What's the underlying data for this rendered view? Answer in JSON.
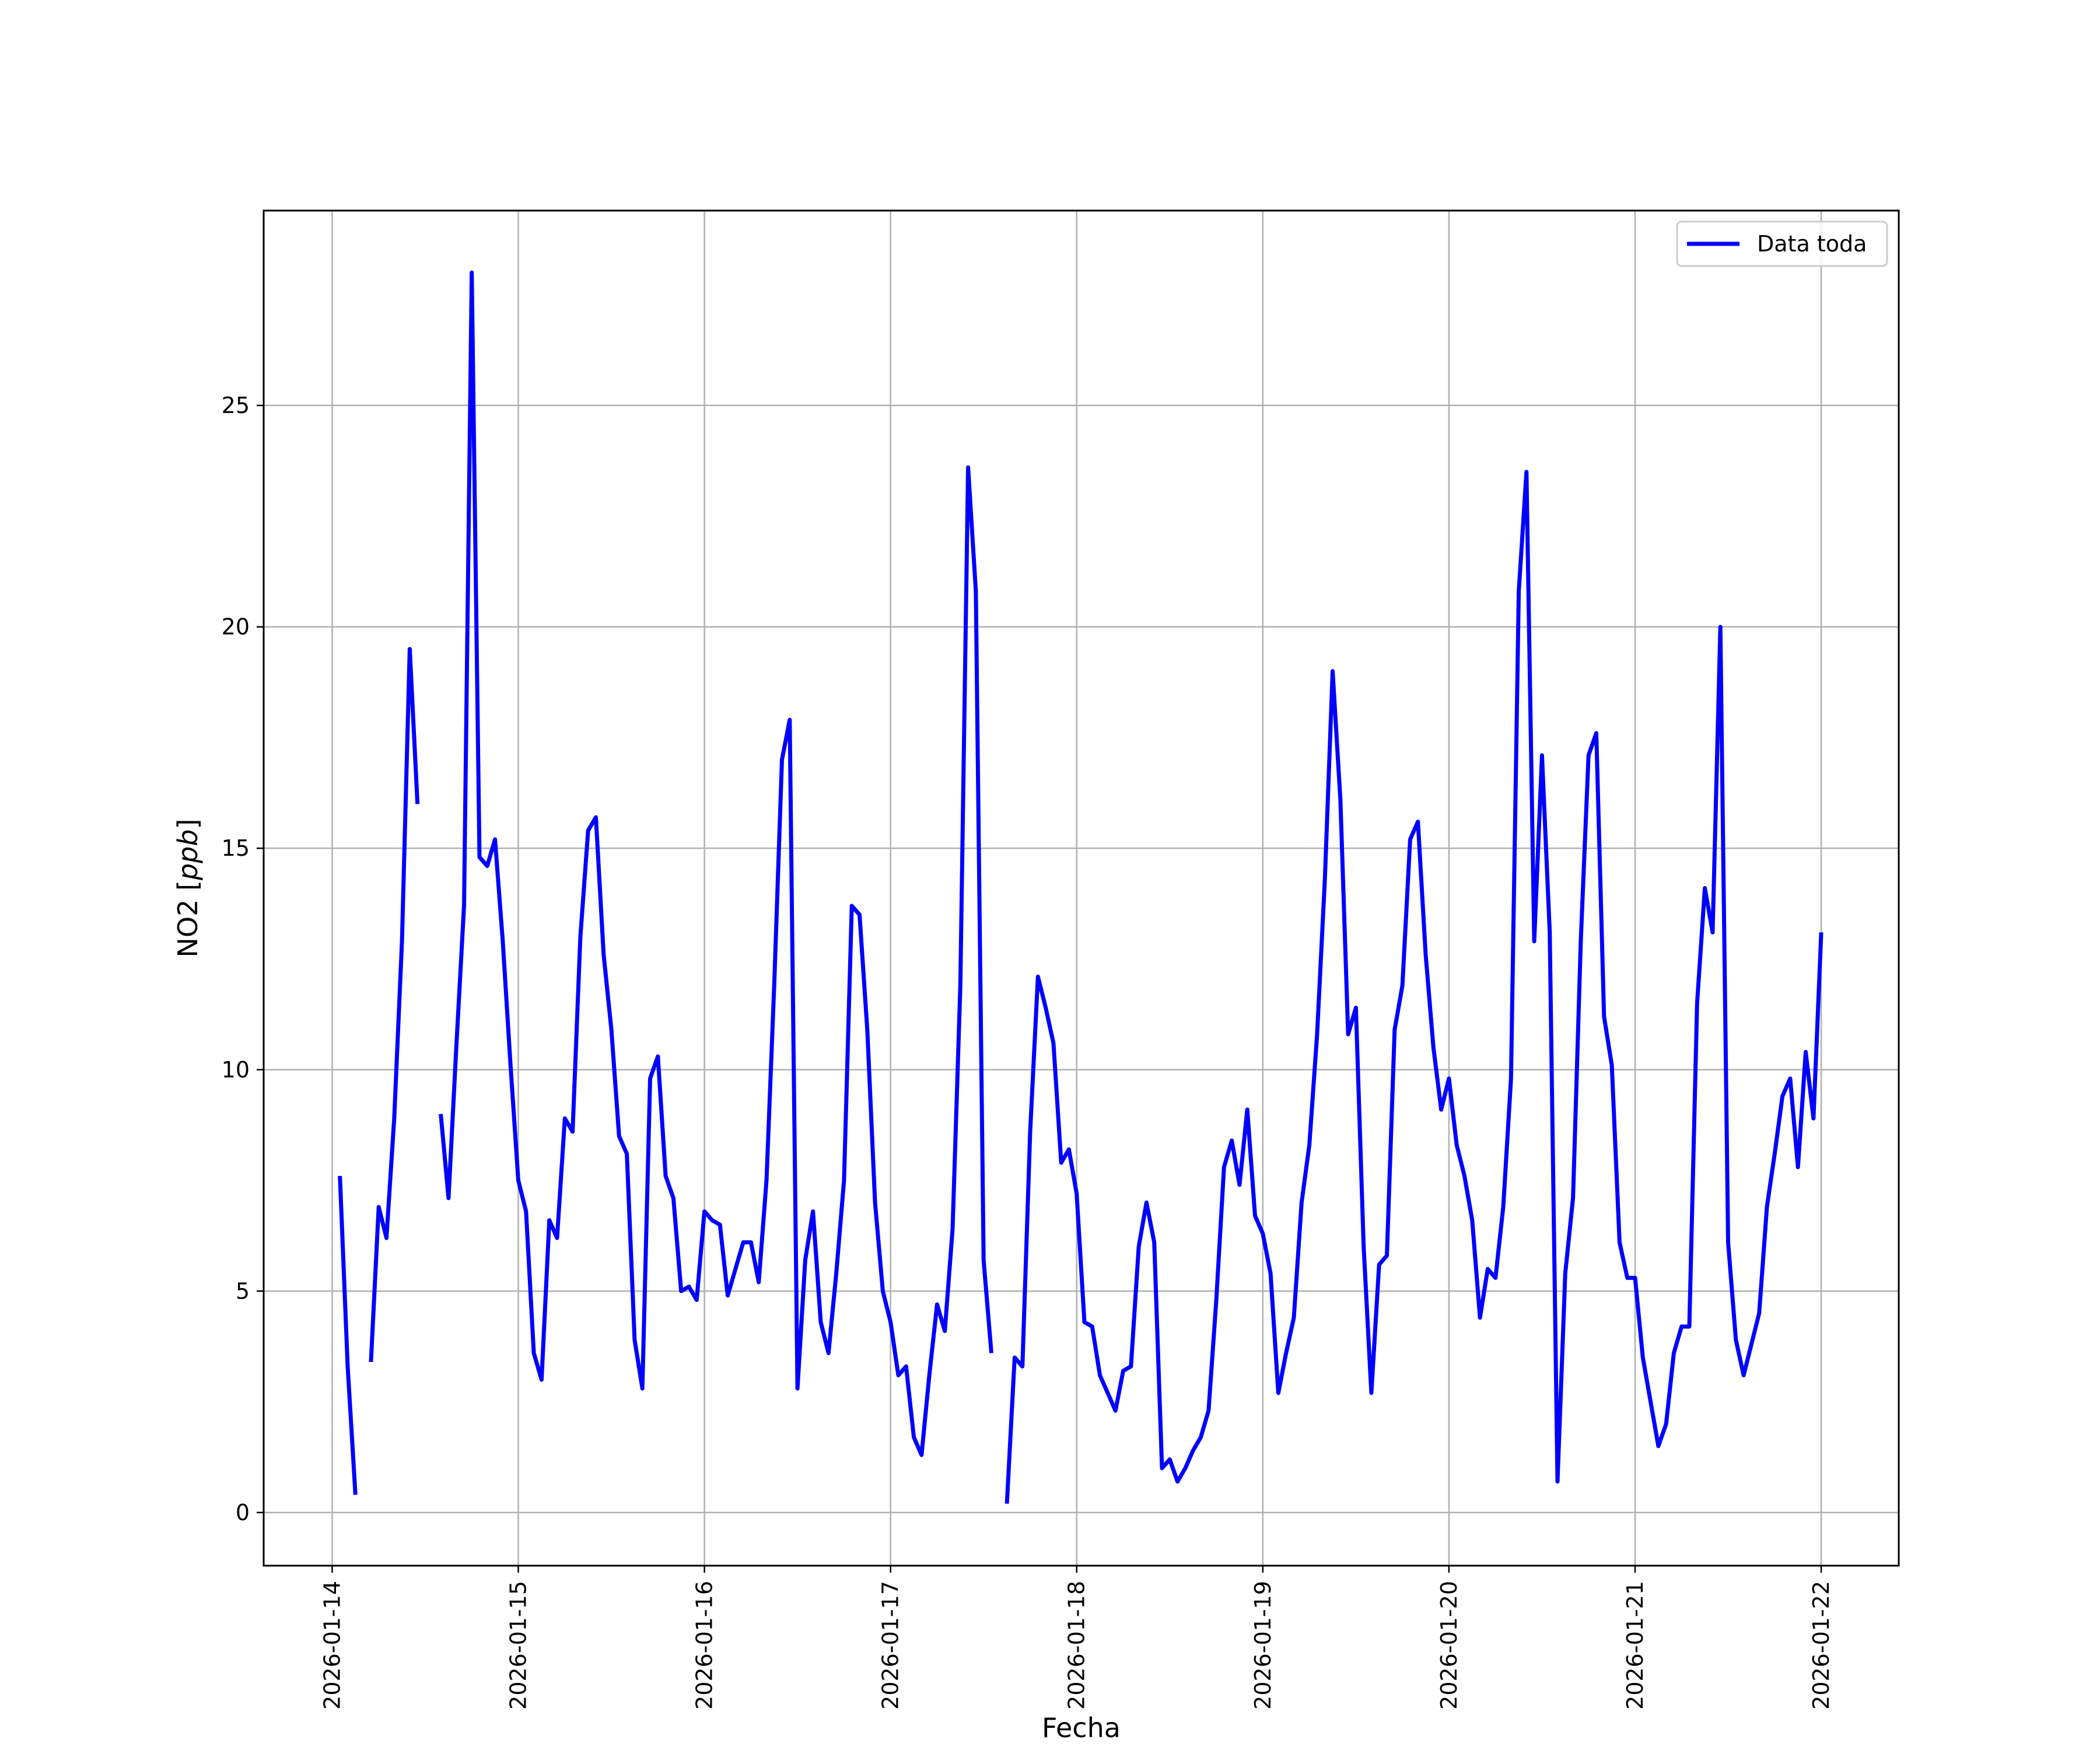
{
  "chart_data": {
    "type": "line",
    "title": "",
    "xlabel": "Fecha",
    "ylabel": "NO2 [ppb]",
    "ylabel_base": "NO2",
    "ylabel_unit": "ppb",
    "ylim": [
      -1.2,
      29.4
    ],
    "yticks": [
      0,
      5,
      10,
      15,
      20,
      25
    ],
    "xticks": [
      "2026-01-14",
      "2026-01-15",
      "2026-01-16",
      "2026-01-17",
      "2026-01-18",
      "2026-01-19",
      "2026-01-20",
      "2026-01-21",
      "2026-01-22"
    ],
    "xlim": [
      "2026-01-13T15:10",
      "2026-01-22T10:00"
    ],
    "grid": true,
    "legend_position": "top-right",
    "series_color": "#0000ff",
    "series": [
      {
        "name": "Data toda",
        "segments": [
          [
            [
              "2026-01-14T01:00",
              7.6
            ],
            [
              "2026-01-14T02:00",
              3.3
            ],
            [
              "2026-01-14T03:00",
              0.4
            ]
          ],
          [
            [
              "2026-01-14T05:00",
              3.4
            ],
            [
              "2026-01-14T06:00",
              6.9
            ],
            [
              "2026-01-14T07:00",
              6.2
            ],
            [
              "2026-01-14T08:00",
              8.9
            ],
            [
              "2026-01-14T09:00",
              12.9
            ],
            [
              "2026-01-14T10:00",
              19.5
            ],
            [
              "2026-01-14T11:00",
              16.0
            ]
          ],
          [
            [
              "2026-01-14T14:00",
              9.0
            ],
            [
              "2026-01-14T15:00",
              7.1
            ],
            [
              "2026-01-14T16:00",
              10.5
            ],
            [
              "2026-01-14T17:00",
              13.7
            ],
            [
              "2026-01-14T18:00",
              28.0
            ],
            [
              "2026-01-14T19:00",
              14.8
            ],
            [
              "2026-01-14T20:00",
              14.6
            ],
            [
              "2026-01-14T21:00",
              15.2
            ],
            [
              "2026-01-14T22:00",
              12.9
            ],
            [
              "2026-01-14T23:00",
              10.1
            ],
            [
              "2026-01-15T00:00",
              7.5
            ],
            [
              "2026-01-15T01:00",
              6.8
            ],
            [
              "2026-01-15T02:00",
              3.6
            ],
            [
              "2026-01-15T03:00",
              3.0
            ],
            [
              "2026-01-15T04:00",
              6.6
            ],
            [
              "2026-01-15T05:00",
              6.2
            ],
            [
              "2026-01-15T06:00",
              8.9
            ],
            [
              "2026-01-15T07:00",
              8.6
            ],
            [
              "2026-01-15T08:00",
              13.0
            ],
            [
              "2026-01-15T09:00",
              15.4
            ],
            [
              "2026-01-15T10:00",
              15.7
            ],
            [
              "2026-01-15T11:00",
              12.6
            ],
            [
              "2026-01-15T12:00",
              10.9
            ],
            [
              "2026-01-15T13:00",
              8.5
            ],
            [
              "2026-01-15T14:00",
              8.1
            ],
            [
              "2026-01-15T15:00",
              3.9
            ],
            [
              "2026-01-15T16:00",
              2.8
            ],
            [
              "2026-01-15T17:00",
              9.8
            ],
            [
              "2026-01-15T18:00",
              10.3
            ],
            [
              "2026-01-15T19:00",
              7.6
            ],
            [
              "2026-01-15T20:00",
              7.1
            ],
            [
              "2026-01-15T21:00",
              5.0
            ],
            [
              "2026-01-15T22:00",
              5.1
            ],
            [
              "2026-01-15T23:00",
              4.8
            ],
            [
              "2026-01-16T00:00",
              6.8
            ],
            [
              "2026-01-16T01:00",
              6.6
            ],
            [
              "2026-01-16T02:00",
              6.5
            ],
            [
              "2026-01-16T03:00",
              4.9
            ],
            [
              "2026-01-16T04:00",
              5.5
            ],
            [
              "2026-01-16T05:00",
              6.1
            ],
            [
              "2026-01-16T06:00",
              6.1
            ],
            [
              "2026-01-16T07:00",
              5.2
            ],
            [
              "2026-01-16T08:00",
              7.5
            ],
            [
              "2026-01-16T09:00",
              11.9
            ],
            [
              "2026-01-16T10:00",
              17.0
            ],
            [
              "2026-01-16T11:00",
              17.9
            ],
            [
              "2026-01-16T12:00",
              2.8
            ],
            [
              "2026-01-16T13:00",
              5.7
            ],
            [
              "2026-01-16T14:00",
              6.8
            ],
            [
              "2026-01-16T15:00",
              4.3
            ],
            [
              "2026-01-16T16:00",
              3.6
            ],
            [
              "2026-01-16T17:00",
              5.4
            ],
            [
              "2026-01-16T18:00",
              7.5
            ],
            [
              "2026-01-16T19:00",
              13.7
            ],
            [
              "2026-01-16T20:00",
              13.5
            ],
            [
              "2026-01-16T21:00",
              10.9
            ],
            [
              "2026-01-16T22:00",
              7.0
            ],
            [
              "2026-01-16T23:00",
              5.0
            ],
            [
              "2026-01-17T00:00",
              4.3
            ],
            [
              "2026-01-17T01:00",
              3.1
            ],
            [
              "2026-01-17T02:00",
              3.3
            ],
            [
              "2026-01-17T03:00",
              1.7
            ],
            [
              "2026-01-17T04:00",
              1.3
            ],
            [
              "2026-01-17T05:00",
              3.1
            ],
            [
              "2026-01-17T06:00",
              4.7
            ],
            [
              "2026-01-17T07:00",
              4.1
            ],
            [
              "2026-01-17T08:00",
              6.4
            ],
            [
              "2026-01-17T09:00",
              11.9
            ],
            [
              "2026-01-17T10:00",
              23.6
            ],
            [
              "2026-01-17T11:00",
              20.8
            ],
            [
              "2026-01-17T12:00",
              5.7
            ],
            [
              "2026-01-17T13:00",
              3.6
            ]
          ],
          [
            [
              "2026-01-17T15:00",
              0.2
            ],
            [
              "2026-01-17T16:00",
              3.5
            ],
            [
              "2026-01-17T17:00",
              3.3
            ],
            [
              "2026-01-17T18:00",
              8.6
            ],
            [
              "2026-01-17T19:00",
              12.1
            ],
            [
              "2026-01-17T20:00",
              11.4
            ],
            [
              "2026-01-17T21:00",
              10.6
            ],
            [
              "2026-01-17T22:00",
              7.9
            ],
            [
              "2026-01-17T23:00",
              8.2
            ],
            [
              "2026-01-18T00:00",
              7.2
            ],
            [
              "2026-01-18T01:00",
              4.3
            ],
            [
              "2026-01-18T02:00",
              4.2
            ],
            [
              "2026-01-18T03:00",
              3.1
            ],
            [
              "2026-01-18T04:00",
              2.7
            ],
            [
              "2026-01-18T05:00",
              2.3
            ],
            [
              "2026-01-18T06:00",
              3.2
            ],
            [
              "2026-01-18T07:00",
              3.3
            ],
            [
              "2026-01-18T08:00",
              6.0
            ],
            [
              "2026-01-18T09:00",
              7.0
            ],
            [
              "2026-01-18T10:00",
              6.1
            ],
            [
              "2026-01-18T11:00",
              1.0
            ],
            [
              "2026-01-18T12:00",
              1.2
            ],
            [
              "2026-01-18T13:00",
              0.7
            ],
            [
              "2026-01-18T14:00",
              1.0
            ],
            [
              "2026-01-18T15:00",
              1.4
            ],
            [
              "2026-01-18T16:00",
              1.7
            ],
            [
              "2026-01-18T17:00",
              2.3
            ],
            [
              "2026-01-18T18:00",
              4.8
            ],
            [
              "2026-01-18T19:00",
              7.8
            ],
            [
              "2026-01-18T20:00",
              8.4
            ],
            [
              "2026-01-18T21:00",
              7.4
            ],
            [
              "2026-01-18T22:00",
              9.1
            ],
            [
              "2026-01-18T23:00",
              6.7
            ],
            [
              "2026-01-19T00:00",
              6.3
            ],
            [
              "2026-01-19T01:00",
              5.4
            ],
            [
              "2026-01-19T02:00",
              2.7
            ],
            [
              "2026-01-19T03:00",
              3.6
            ],
            [
              "2026-01-19T04:00",
              4.4
            ],
            [
              "2026-01-19T05:00",
              7.0
            ],
            [
              "2026-01-19T06:00",
              8.3
            ],
            [
              "2026-01-19T07:00",
              10.8
            ],
            [
              "2026-01-19T08:00",
              14.3
            ],
            [
              "2026-01-19T09:00",
              19.0
            ],
            [
              "2026-01-19T10:00",
              16.1
            ],
            [
              "2026-01-19T11:00",
              10.8
            ],
            [
              "2026-01-19T12:00",
              11.4
            ],
            [
              "2026-01-19T13:00",
              6.0
            ],
            [
              "2026-01-19T14:00",
              2.7
            ],
            [
              "2026-01-19T15:00",
              5.6
            ],
            [
              "2026-01-19T16:00",
              5.8
            ],
            [
              "2026-01-19T17:00",
              10.9
            ],
            [
              "2026-01-19T18:00",
              11.9
            ],
            [
              "2026-01-19T19:00",
              15.2
            ],
            [
              "2026-01-19T20:00",
              15.6
            ],
            [
              "2026-01-19T21:00",
              12.6
            ],
            [
              "2026-01-19T22:00",
              10.5
            ],
            [
              "2026-01-19T23:00",
              9.1
            ],
            [
              "2026-01-20T00:00",
              9.8
            ],
            [
              "2026-01-20T01:00",
              8.3
            ],
            [
              "2026-01-20T02:00",
              7.6
            ],
            [
              "2026-01-20T03:00",
              6.6
            ],
            [
              "2026-01-20T04:00",
              4.4
            ],
            [
              "2026-01-20T05:00",
              5.5
            ],
            [
              "2026-01-20T06:00",
              5.3
            ],
            [
              "2026-01-20T07:00",
              6.9
            ],
            [
              "2026-01-20T08:00",
              9.8
            ],
            [
              "2026-01-20T09:00",
              20.8
            ],
            [
              "2026-01-20T10:00",
              23.5
            ],
            [
              "2026-01-20T11:00",
              12.9
            ],
            [
              "2026-01-20T12:00",
              17.1
            ],
            [
              "2026-01-20T13:00",
              13.1
            ],
            [
              "2026-01-20T14:00",
              0.7
            ],
            [
              "2026-01-20T15:00",
              5.4
            ],
            [
              "2026-01-20T16:00",
              7.1
            ],
            [
              "2026-01-20T17:00",
              12.9
            ],
            [
              "2026-01-20T18:00",
              17.1
            ],
            [
              "2026-01-20T19:00",
              17.6
            ],
            [
              "2026-01-20T20:00",
              11.2
            ],
            [
              "2026-01-20T21:00",
              10.1
            ],
            [
              "2026-01-20T22:00",
              6.1
            ],
            [
              "2026-01-20T23:00",
              5.3
            ],
            [
              "2026-01-21T00:00",
              5.3
            ],
            [
              "2026-01-21T01:00",
              3.5
            ],
            [
              "2026-01-21T02:00",
              2.5
            ],
            [
              "2026-01-21T03:00",
              1.5
            ],
            [
              "2026-01-21T04:00",
              2.0
            ],
            [
              "2026-01-21T05:00",
              3.6
            ],
            [
              "2026-01-21T06:00",
              4.2
            ],
            [
              "2026-01-21T07:00",
              4.2
            ],
            [
              "2026-01-21T08:00",
              11.5
            ],
            [
              "2026-01-21T09:00",
              14.1
            ],
            [
              "2026-01-21T10:00",
              13.1
            ],
            [
              "2026-01-21T11:00",
              20.0
            ],
            [
              "2026-01-21T12:00",
              6.1
            ],
            [
              "2026-01-21T13:00",
              3.9
            ],
            [
              "2026-01-21T14:00",
              3.1
            ],
            [
              "2026-01-21T15:00",
              3.8
            ],
            [
              "2026-01-21T16:00",
              4.5
            ],
            [
              "2026-01-21T17:00",
              6.9
            ],
            [
              "2026-01-21T18:00",
              8.1
            ],
            [
              "2026-01-21T19:00",
              9.4
            ],
            [
              "2026-01-21T20:00",
              9.8
            ],
            [
              "2026-01-21T21:00",
              7.8
            ],
            [
              "2026-01-21T22:00",
              10.4
            ],
            [
              "2026-01-21T23:00",
              8.9
            ],
            [
              "2026-01-22T00:00",
              13.1
            ]
          ]
        ]
      }
    ]
  }
}
